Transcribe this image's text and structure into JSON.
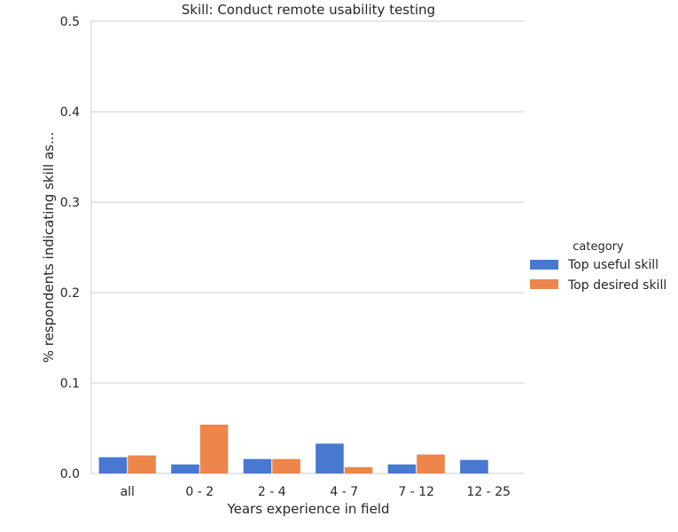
{
  "chart_data": {
    "type": "bar",
    "title": "Skill: Conduct remote usability testing",
    "xlabel": "Years experience in field",
    "ylabel": "% respondents indicating skill as...",
    "categories": [
      "all",
      "0 - 2",
      "2 - 4",
      "4 - 7",
      "7 - 12",
      "12 - 25"
    ],
    "series": [
      {
        "name": "Top useful skill",
        "color": "#4878d0",
        "values": [
          0.018,
          0.01,
          0.016,
          0.033,
          0.01,
          0.015
        ]
      },
      {
        "name": "Top desired skill",
        "color": "#ee854a",
        "values": [
          0.02,
          0.054,
          0.016,
          0.007,
          0.021,
          0.0
        ]
      }
    ],
    "ylim": [
      0,
      0.5
    ],
    "yticks": [
      "0.0",
      "0.1",
      "0.2",
      "0.3",
      "0.4",
      "0.5"
    ],
    "grid": "horizontal",
    "legend": {
      "title": "category",
      "placement": "right"
    }
  }
}
